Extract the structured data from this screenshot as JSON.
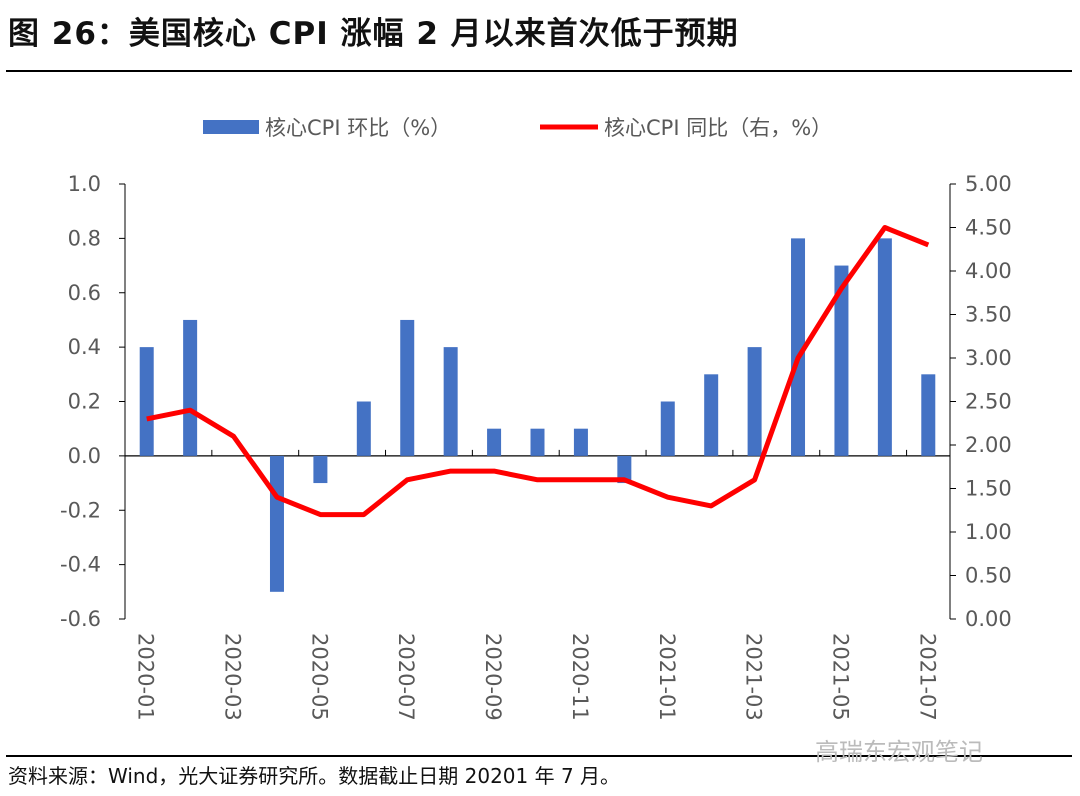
{
  "title": "图 26：美国核心 CPI 涨幅 2 月以来首次低于预期",
  "source": "资料来源：Wind，光大证券研究所。数据截止日期 20201 年 7 月。",
  "watermark": "高瑞东宏观笔记",
  "chart_data": {
    "type": "bar+line",
    "categories": [
      "2020-01",
      "2020-02",
      "2020-03",
      "2020-04",
      "2020-05",
      "2020-06",
      "2020-07",
      "2020-08",
      "2020-09",
      "2020-10",
      "2020-11",
      "2020-12",
      "2021-01",
      "2021-02",
      "2021-03",
      "2021-04",
      "2021-05",
      "2021-06",
      "2021-07"
    ],
    "xtick_labels": [
      "2020-01",
      "2020-03",
      "2020-05",
      "2020-07",
      "2020-09",
      "2020-11",
      "2021-01",
      "2021-03",
      "2021-05",
      "2021-07"
    ],
    "series": [
      {
        "name": "核心CPI 环比（%）",
        "type": "bar",
        "axis": "left",
        "color": "#4472C4",
        "values": [
          0.4,
          0.5,
          0.0,
          -0.5,
          -0.1,
          0.2,
          0.5,
          0.4,
          0.1,
          0.1,
          0.1,
          -0.1,
          0.2,
          0.3,
          0.4,
          0.8,
          0.7,
          0.8,
          0.3
        ]
      },
      {
        "name": "核心CPI 同比（右，%）",
        "type": "line",
        "axis": "right",
        "color": "#FF0000",
        "values": [
          2.3,
          2.4,
          2.1,
          1.4,
          1.2,
          1.2,
          1.6,
          1.7,
          1.7,
          1.6,
          1.6,
          1.6,
          1.4,
          1.3,
          1.6,
          3.0,
          3.8,
          4.5,
          4.3
        ]
      }
    ],
    "ylim_left": [
      -0.6,
      1.0
    ],
    "yticks_left": [
      "1.0",
      "0.8",
      "0.6",
      "0.4",
      "0.2",
      "0.0",
      "-0.2",
      "-0.4",
      "-0.6"
    ],
    "ylim_right": [
      0,
      5
    ],
    "yticks_right": [
      "5.00",
      "4.50",
      "4.00",
      "3.50",
      "3.00",
      "2.50",
      "2.00",
      "1.50",
      "1.00",
      "0.50",
      "0.00"
    ],
    "legend_position": "top",
    "grid": false
  }
}
